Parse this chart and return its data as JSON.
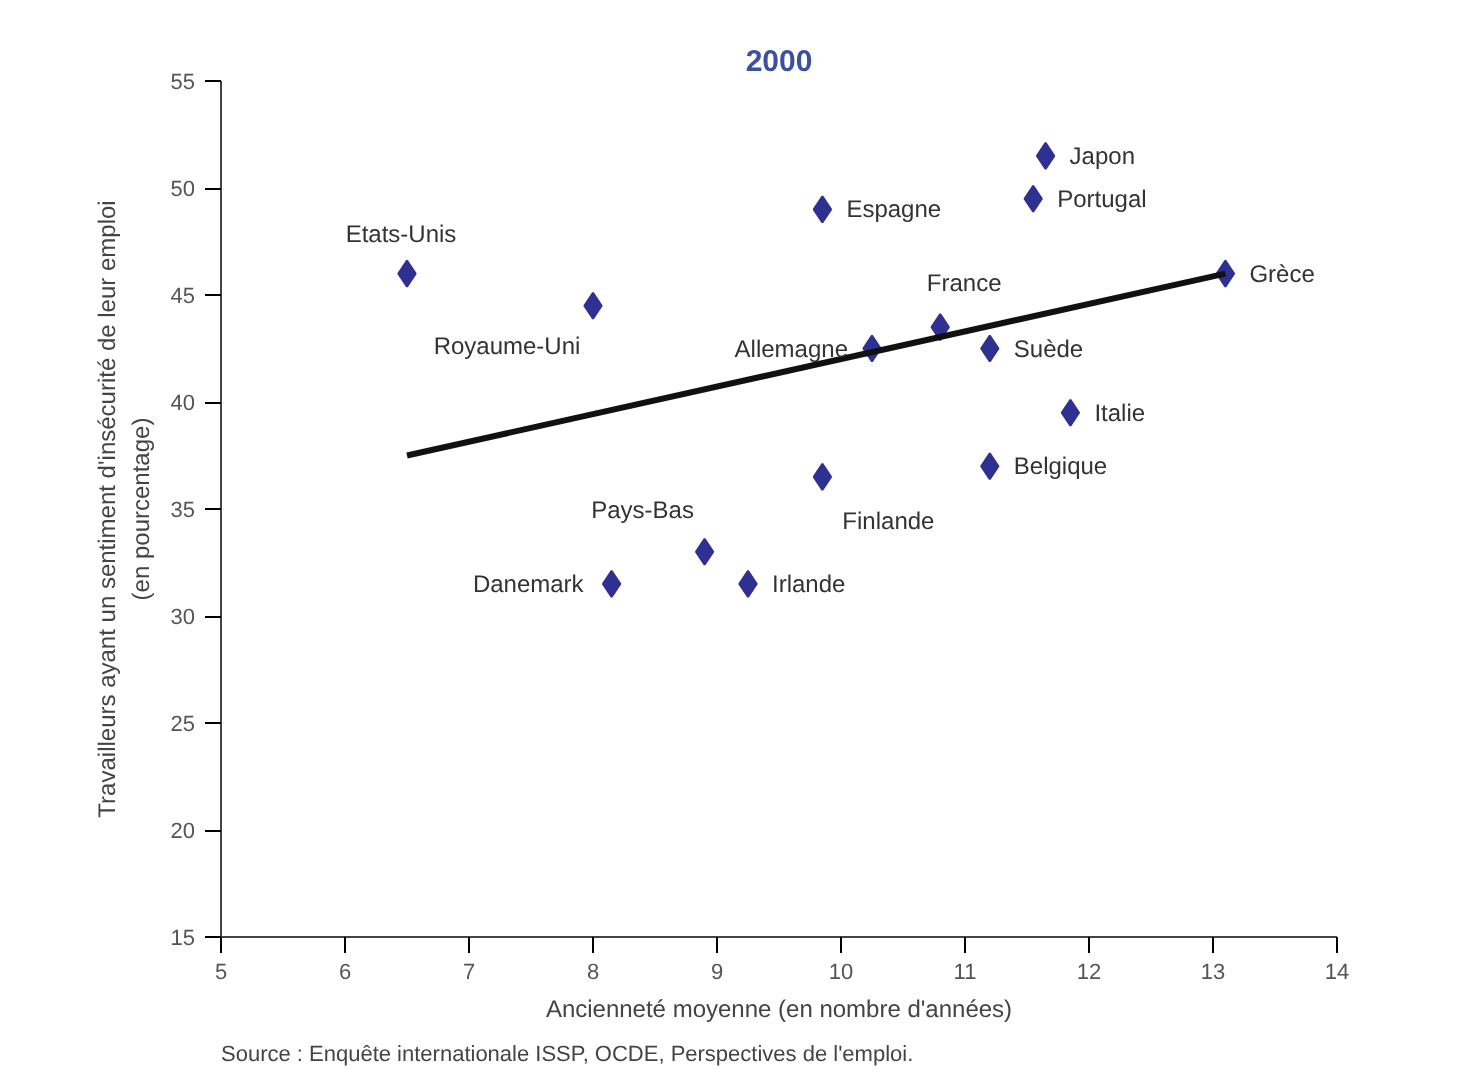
{
  "chart_data": {
    "type": "scatter",
    "title": "2000",
    "xlabel": "Ancienneté moyenne (en nombre d'années)",
    "ylabel": "Travailleurs ayant un sentiment d'insécurité de leur emploi\n(en pourcentage)",
    "annotations": [
      "Source : Enquête internationale ISSP, OCDE, Perspectives de l'emploi."
    ],
    "xlim": [
      5,
      14
    ],
    "xticks": [
      5,
      6,
      7,
      8,
      9,
      10,
      11,
      12,
      13,
      14
    ],
    "ylim": [
      15,
      55
    ],
    "yticks": [
      15,
      20,
      25,
      30,
      35,
      40,
      45,
      50,
      55
    ],
    "grid": false,
    "series": [
      {
        "marker": "diamond",
        "color": "#2e3192",
        "x": [
          6.5,
          8.0,
          10.25,
          10.8,
          9.85,
          11.65,
          11.55,
          13.1,
          11.2,
          11.85,
          11.2,
          9.85,
          8.9,
          9.25,
          8.15
        ],
        "values": [
          46,
          44.5,
          42.5,
          43.5,
          49,
          51.5,
          49.5,
          46,
          42.5,
          39.5,
          37,
          36.5,
          33,
          31.5,
          31.5
        ],
        "value_labels": [
          "Etats-Unis",
          "Royaume-Uni",
          "Allemagne",
          "France",
          "Espagne",
          "Japon",
          "Portugal",
          "Grèce",
          "Suède",
          "Italie",
          "Belgique",
          "Finlande",
          "Pays-Bas",
          "Irlande",
          "Danemark"
        ]
      },
      {
        "type": "line",
        "color": "#111111",
        "x": [
          6.5,
          13.1
        ],
        "values": [
          37.5,
          46
        ]
      }
    ]
  }
}
